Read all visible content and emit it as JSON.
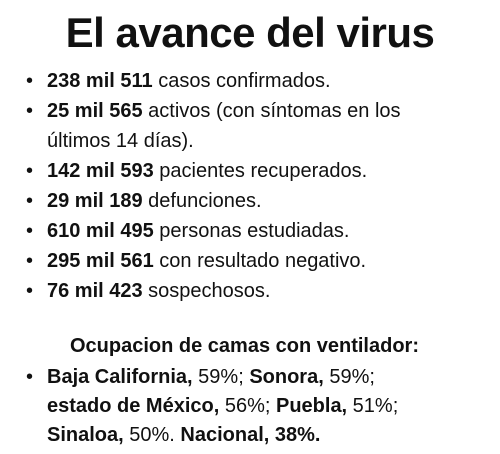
{
  "title": "El avance del virus",
  "bullet_glyph": "•",
  "stats": [
    {
      "number": "238 mil 511",
      "text": " casos confirmados."
    },
    {
      "number": "25 mil 565",
      "text": " activos (con síntomas en los",
      "text2": "últimos 14 días)."
    },
    {
      "number": "142 mil 593",
      "text": " pacientes recuperados."
    },
    {
      "number": "29 mil 189",
      "text": " defunciones."
    },
    {
      "number": "610 mil 495",
      "text": " personas estudiadas."
    },
    {
      "number": "295 mil 561",
      "text": " con resultado negativo."
    },
    {
      "number": "76 mil 423",
      "text": " sospechosos."
    }
  ],
  "occupancy": {
    "heading": "Ocupacion de camas con ventilador:",
    "entries": [
      {
        "place": "Baja California,",
        "value": " 59%; "
      },
      {
        "place": "Sonora,",
        "value": " 59%;"
      },
      {
        "place": "estado de México,",
        "value": " 56%; "
      },
      {
        "place": "Puebla,",
        "value": " 51%;"
      },
      {
        "place": "Sinaloa,",
        "value": " 50%. "
      },
      {
        "place": "Nacional, 38%.",
        "value": ""
      }
    ]
  }
}
